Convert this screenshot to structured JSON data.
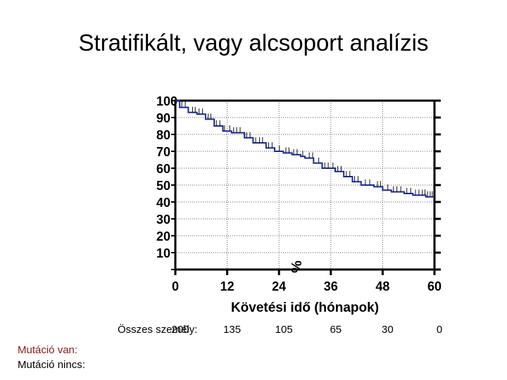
{
  "title": "Stratifikált, vagy alcsoport analízis",
  "chart_data": {
    "type": "line",
    "title": "",
    "xlabel": "Követési idő (hónapok)",
    "ylabel": "%",
    "xlim": [
      0,
      60
    ],
    "ylim": [
      0,
      100
    ],
    "x_ticks": [
      0,
      12,
      24,
      36,
      48,
      60
    ],
    "y_ticks": [
      10,
      20,
      30,
      40,
      50,
      60,
      70,
      80,
      90,
      100
    ],
    "y_tick_labels": [
      "10",
      "20",
      "30",
      "40",
      "50",
      "60",
      "70",
      "80",
      "90",
      "100"
    ],
    "x_tick_labels": [
      "0",
      "12",
      "24",
      "36",
      "48",
      "60"
    ],
    "grid": true,
    "series": [
      {
        "color": "#1a2a9a",
        "step": true,
        "points": [
          [
            0,
            100
          ],
          [
            1,
            96
          ],
          [
            3,
            93
          ],
          [
            5,
            92
          ],
          [
            7,
            89
          ],
          [
            9,
            85
          ],
          [
            11,
            82
          ],
          [
            13,
            81
          ],
          [
            16,
            78
          ],
          [
            18,
            75
          ],
          [
            21,
            72
          ],
          [
            23,
            70
          ],
          [
            25,
            69
          ],
          [
            27,
            68
          ],
          [
            29,
            67
          ],
          [
            30,
            66
          ],
          [
            32,
            63
          ],
          [
            34,
            60
          ],
          [
            37,
            58
          ],
          [
            39,
            55
          ],
          [
            41,
            52
          ],
          [
            43,
            50
          ],
          [
            46,
            49
          ],
          [
            48,
            47
          ],
          [
            50,
            46
          ],
          [
            53,
            45
          ],
          [
            55,
            44
          ],
          [
            58,
            43
          ],
          [
            60,
            43
          ]
        ],
        "censor_x": [
          1.5,
          2.3,
          4.0,
          4.6,
          5.5,
          6.3,
          7.6,
          8.2,
          9.5,
          10.3,
          11.4,
          12.6,
          13.5,
          14.2,
          15.0,
          16.5,
          17.3,
          18.6,
          19.5,
          20.2,
          21.6,
          22.4,
          24.1,
          25.6,
          26.3,
          27.4,
          28.2,
          29.5,
          31.0,
          31.8,
          33.2,
          34.6,
          35.4,
          36.5,
          37.6,
          38.4,
          39.6,
          40.4,
          41.5,
          42.3,
          44.0,
          45.0,
          46.8,
          47.5,
          49.2,
          50.5,
          51.3,
          52.2,
          53.6,
          54.5,
          55.6,
          56.4,
          57.2,
          57.8,
          58.4,
          59.0,
          59.5
        ]
      }
    ]
  },
  "at_risk": {
    "label": "Összes személy:",
    "counts": [
      "200",
      "135",
      "105",
      "65",
      "30",
      "0"
    ]
  },
  "mutation": {
    "yes_label": "Mutáció van:",
    "no_label": "Mutáció nincs:"
  }
}
